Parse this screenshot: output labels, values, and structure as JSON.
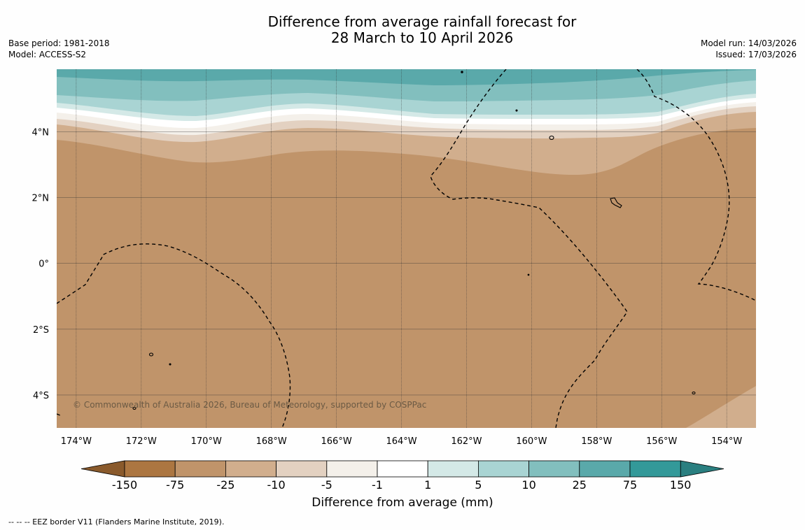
{
  "title": {
    "line1": "Difference from average rainfall forecast for",
    "line2": "28 March to 10 April 2026"
  },
  "meta": {
    "base_period": "Base period: 1981-2018",
    "model": "Model: ACCESS-S2",
    "model_run": "Model run: 14/03/2026",
    "issued": "Issued: 17/03/2026"
  },
  "copyright": "© Commonwealth of Australia 2026, Bureau of Meteorology, supported by COSPPac",
  "map": {
    "lon_range": [
      -174.6,
      -153.1
    ],
    "lat_range": [
      -5.0,
      5.9
    ],
    "lon_ticks": [
      "174°W",
      "172°W",
      "170°W",
      "168°W",
      "166°W",
      "164°W",
      "162°W",
      "160°W",
      "158°W",
      "156°W",
      "154°W"
    ],
    "lat_ticks": [
      "4°N",
      "2°N",
      "0°",
      "2°S",
      "4°S"
    ],
    "lon_tick_values": [
      -174,
      -172,
      -170,
      -168,
      -166,
      -164,
      -162,
      -160,
      -158,
      -156,
      -154
    ],
    "lat_tick_values": [
      4,
      2,
      0,
      -2,
      -4
    ]
  },
  "colorbar": {
    "label": "Difference from average (mm)",
    "ticks": [
      "-150",
      "-75",
      "-25",
      "-10",
      "-5",
      "-1",
      "1",
      "5",
      "10",
      "25",
      "75",
      "150"
    ],
    "colors": {
      "under": "#8a5a2c",
      "bins": [
        "#ac7641",
        "#c0946a",
        "#d1ae8d",
        "#e3d1c1",
        "#f4f0ea",
        "#ffffff",
        "#d4e9e7",
        "#a9d4d3",
        "#82bfbe",
        "#5aa9aa",
        "#339999"
      ],
      "over": "#2a7f80"
    }
  },
  "legend_footer": "--  --  -- EEZ border V11 (Flanders Marine Institute, 2019)."
}
